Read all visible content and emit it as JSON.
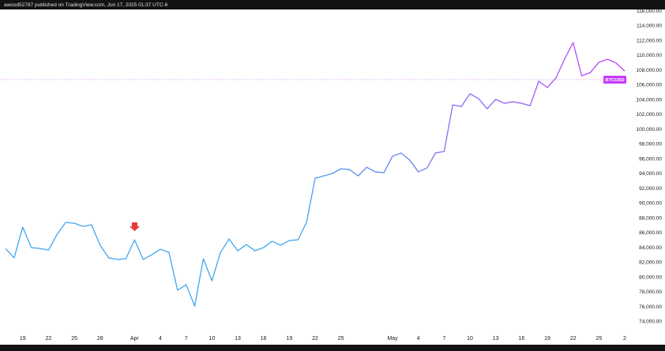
{
  "header": "awood52787 published on TradingView.com, Jun 17, 2025 01:37 UTC-6",
  "chart_data": {
    "type": "line",
    "categories": [
      null,
      null,
      "19",
      null,
      null,
      "22",
      null,
      null,
      "25",
      null,
      null,
      "28",
      null,
      null,
      null,
      "Apr",
      null,
      null,
      "4",
      null,
      null,
      "7",
      null,
      null,
      "10",
      null,
      null,
      "13",
      null,
      null,
      "16",
      null,
      null,
      "19",
      null,
      null,
      "22",
      null,
      null,
      "25",
      null,
      null,
      null,
      null,
      null,
      "May",
      null,
      null,
      "4",
      null,
      null,
      "7",
      null,
      null,
      "10",
      null,
      null,
      "13",
      null,
      null,
      "16",
      null,
      null,
      "19",
      null,
      null,
      "22",
      null,
      null,
      "25",
      null,
      null,
      "2"
    ],
    "series": [
      {
        "name": "BTCUSD",
        "colors": [
          "#3fa7ee",
          "#c53cf6"
        ],
        "values": [
          83900,
          82640,
          86800,
          84030,
          83900,
          83700,
          85840,
          87440,
          87330,
          86900,
          87120,
          84350,
          82640,
          82430,
          82530,
          85090,
          82430,
          83070,
          83810,
          83390,
          78270,
          79010,
          76130,
          82530,
          79550,
          83390,
          85200,
          83600,
          84450,
          83600,
          84030,
          84880,
          84350,
          84990,
          85090,
          87440,
          93410,
          93730,
          94050,
          94690,
          94590,
          93730,
          94900,
          94270,
          94160,
          96400,
          96830,
          95870,
          94270,
          94800,
          96830,
          97040,
          103330,
          103120,
          104830,
          104190,
          102800,
          104080,
          103550,
          103760,
          103550,
          103230,
          106530,
          105680,
          106960,
          109520,
          111760,
          107280,
          107710,
          109090,
          109520,
          108990,
          107920
        ]
      }
    ],
    "price_line": 106750,
    "ylim": [
      72500,
      116240
    ],
    "yticks": [
      {
        "value": 74000,
        "label": "74,000.00"
      },
      {
        "value": 76000,
        "label": "76,000.00"
      },
      {
        "value": 78000,
        "label": "78,000.00"
      },
      {
        "value": 80000,
        "label": "80,000.00"
      },
      {
        "value": 82000,
        "label": "82,000.00"
      },
      {
        "value": 84000,
        "label": "84,000.00"
      },
      {
        "value": 86000,
        "label": "86,000.00"
      },
      {
        "value": 88000,
        "label": "88,000.00"
      },
      {
        "value": 90000,
        "label": "90,000.00"
      },
      {
        "value": 92000,
        "label": "92,000.00"
      },
      {
        "value": 94000,
        "label": "94,000.00"
      },
      {
        "value": 96000,
        "label": "96,000.00"
      },
      {
        "value": 98000,
        "label": "98,000.00"
      },
      {
        "value": 100000,
        "label": "100,000.00"
      },
      {
        "value": 102000,
        "label": "102,000.00"
      },
      {
        "value": 104000,
        "label": "104,000.00"
      },
      {
        "value": 106000,
        "label": "106,000.00"
      },
      {
        "value": 108000,
        "label": "108,000.00"
      },
      {
        "value": 110000,
        "label": "110,000.00"
      },
      {
        "value": 112000,
        "label": "112,000.00"
      },
      {
        "value": 114000,
        "label": "114,000.00"
      },
      {
        "value": 116000,
        "label": "116,000.00"
      }
    ],
    "grid": false
  }
}
